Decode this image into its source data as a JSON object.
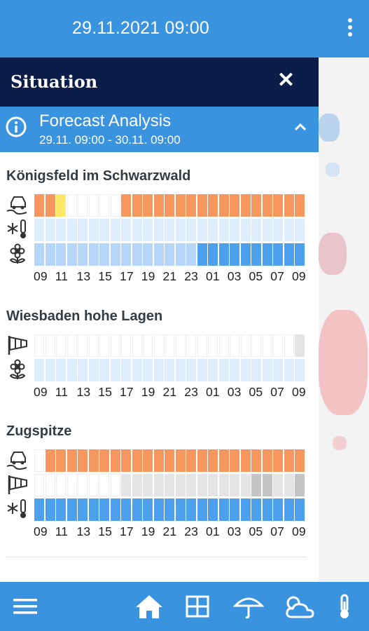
{
  "header": {
    "datetime": "29.11.2021 09:00"
  },
  "panel": {
    "title": "Situation",
    "section": {
      "title": "Forecast Analysis",
      "range": "29.11. 09:00 - 30.11. 09:00"
    }
  },
  "hours": [
    "09",
    "11",
    "13",
    "15",
    "17",
    "19",
    "21",
    "23",
    "01",
    "03",
    "05",
    "07",
    "09"
  ],
  "colors": {
    "none": "#ffffff",
    "orange": "#f5975f",
    "yellow": "#fce96a",
    "lightblue": "#deedfc",
    "midblue": "#b5d6f9",
    "blue": "#4da1ec",
    "gray1": "#e4e4e4",
    "gray2": "#c4c4c4"
  },
  "locations": [
    {
      "name": "Königsfeld im Schwarzwald",
      "rows": [
        {
          "icon": "road-slippery-icon",
          "cells": "OOYWWWWWOOOOOOOOOOOOOOOOO"
        },
        {
          "icon": "frost-thermometer-icon",
          "cells": "LLLLLLLLLLLLLLLLLLLLLLLLL"
        },
        {
          "icon": "pollen-flower-icon",
          "cells": "MMMMMMMMMMMMMMMBBBBBBBBBB"
        }
      ]
    },
    {
      "name": "Wiesbaden hohe Lagen",
      "rows": [
        {
          "icon": "windsock-icon",
          "cells": "WWWWWWWWWWWWWWWWWWWWWWWWG"
        },
        {
          "icon": "pollen-flower-icon",
          "cells": "LLLLLLLLLLLLLLLLLLLLLLLLL"
        }
      ]
    },
    {
      "name": "Zugspitze",
      "rows": [
        {
          "icon": "road-slippery-icon",
          "cells": "WOOOOOOOOOOOOOOOOOOOOOOOO"
        },
        {
          "icon": "windsock-icon",
          "cells": "WWWWWWWWGGGGGGGGGGGGHHGGH"
        },
        {
          "icon": "frost-thermometer-icon",
          "cells": "BBBBBBBBBBBBBBBBBBBBBBBBB"
        }
      ]
    }
  ],
  "bottom_nav": [
    "menu-icon",
    "home-icon",
    "grid-icon",
    "umbrella-icon",
    "cloud-sun-icon",
    "thermometer-icon"
  ]
}
